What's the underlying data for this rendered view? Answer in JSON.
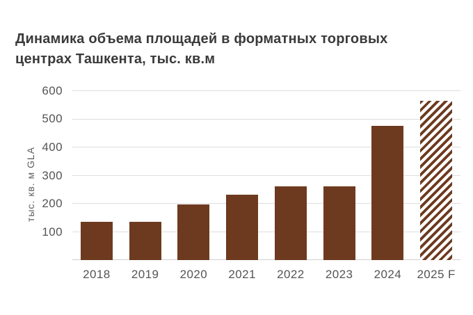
{
  "header": {
    "title_lines": [
      "Динамика объема площадей в форматных торговых",
      "центрах Ташкента, тыс. кв.м"
    ]
  },
  "chart_data": {
    "type": "bar",
    "title": "Динамика объема площадей в форматных торговых центрах Ташкента, тыс. кв.м",
    "xlabel": "",
    "ylabel": "тыс. кв. м GLA",
    "categories": [
      "2018",
      "2019",
      "2020",
      "2021",
      "2022",
      "2023",
      "2024",
      "2025 F"
    ],
    "values": [
      135,
      137,
      198,
      232,
      263,
      263,
      477,
      565
    ],
    "forecast_index": 7,
    "forecast_style": "diagonal-hatch",
    "ylim": [
      0,
      600
    ],
    "yticks": [
      100,
      200,
      300,
      400,
      500,
      600
    ],
    "grid": true,
    "legend": "none",
    "colors": {
      "bar": "#6d3a1f",
      "gridline": "#dddddd",
      "baseline": "#cfcfcf",
      "tick_label": "#545454",
      "axis_title": "#5e5e5e",
      "title": "#3a3a3a",
      "background": "#ffffff"
    }
  }
}
